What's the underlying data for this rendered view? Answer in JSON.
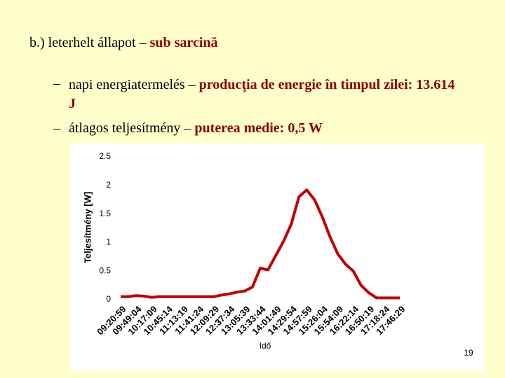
{
  "slide": {
    "heading": [
      "b.) leterhelt állapot – ",
      "sub sarcină"
    ],
    "bullets": [
      [
        "napi energiatermelés – ",
        "producţia de energie în timpul zilei:  13.614 J"
      ],
      [
        "átlagos teljesítmény – ",
        "puterea medie:  0,5 W"
      ]
    ],
    "page_number": "19"
  },
  "chart_data": {
    "type": "line",
    "x_label": "Idő",
    "y_label": "Teljesítmény [W]",
    "categories": [
      "09:20:59",
      null,
      "09:49:04",
      null,
      "10:17:09",
      null,
      "10:45:14",
      null,
      "11:13:19",
      null,
      "11:41:24",
      null,
      "12:09:29",
      null,
      "12:37:34",
      null,
      "13:05:39",
      null,
      "13:33:44",
      null,
      "14:01:49",
      null,
      "14:29:54",
      null,
      "14:57:59",
      null,
      "15:26:04",
      null,
      "15:54:09",
      null,
      "16:22:14",
      null,
      "16:50:19",
      null,
      "17:18:24",
      null,
      "17:46:29"
    ],
    "series": [
      {
        "name": null,
        "color": "#c00000",
        "values": [
          0.05,
          0.05,
          0.07,
          0.06,
          0.04,
          0.05,
          0.05,
          0.05,
          0.05,
          0.05,
          0.05,
          0.05,
          0.05,
          0.08,
          0.1,
          0.13,
          0.15,
          0.22,
          0.55,
          0.52,
          0.77,
          1.02,
          1.32,
          1.8,
          1.92,
          1.75,
          1.45,
          1.1,
          0.8,
          0.62,
          0.5,
          0.25,
          0.12,
          0.03,
          0.03,
          0.03,
          0.03
        ]
      }
    ],
    "ylim": [
      0,
      2.5
    ],
    "yticks": [
      0,
      0.5,
      1,
      1.5,
      2,
      2.5
    ],
    "grid": false
  }
}
